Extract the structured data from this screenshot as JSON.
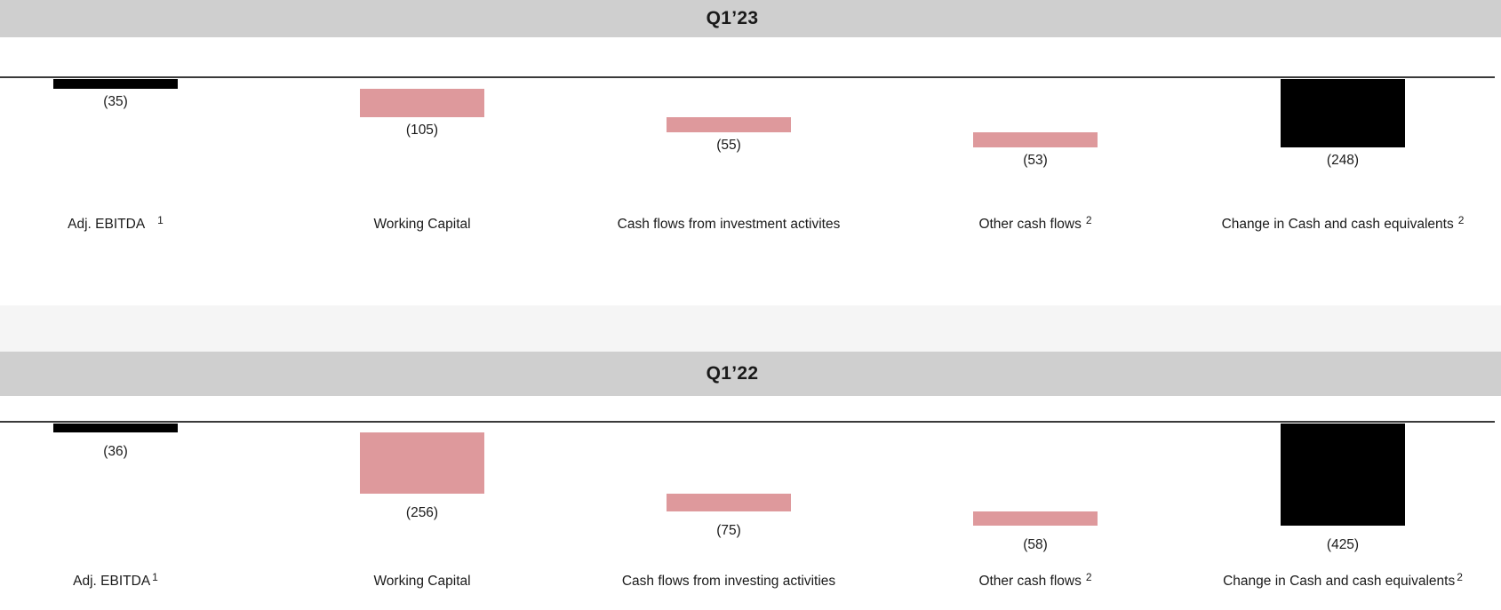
{
  "palette": {
    "header_bg": "#cfcfcf",
    "divider_band": "#f5f5f5",
    "baseline": "#3a3a3a",
    "bar_black": "#000000",
    "bar_pink": "#de999c",
    "text": "#1a1a1a"
  },
  "chart_data": [
    {
      "type": "bar",
      "subtype": "waterfall",
      "title": "Q1’23",
      "grid": "off",
      "legend": "none",
      "ylim": [
        -248,
        0
      ],
      "note": "all values negative, shown in parentheses; bars hang below baseline; last bar is cumulative total",
      "categories": [
        {
          "label": "Adj. EBITDA",
          "sup": "1",
          "sup_gap": "wide"
        },
        {
          "label": "Working Capital",
          "sup": "",
          "sup_gap": "none"
        },
        {
          "label": "Cash flows from investment activites",
          "sup": "",
          "sup_gap": "none"
        },
        {
          "label": "Other cash flows",
          "sup": "2",
          "sup_gap": "narrow"
        },
        {
          "label": "Change in Cash and cash equivalents",
          "sup": "2",
          "sup_gap": "narrow"
        }
      ],
      "values": [
        -35,
        -105,
        -55,
        -53,
        -248
      ],
      "value_labels": [
        "(35)",
        "(105)",
        "(55)",
        "(53)",
        "(248)"
      ],
      "cumulative_starts": [
        0,
        -35,
        -140,
        -195,
        0
      ],
      "bar_colors": [
        "black",
        "pink",
        "pink",
        "pink",
        "black"
      ]
    },
    {
      "type": "bar",
      "subtype": "waterfall",
      "title": "Q1’22",
      "grid": "off",
      "legend": "none",
      "ylim": [
        -425,
        0
      ],
      "note": "all values negative, shown in parentheses; bars hang below baseline; last bar is cumulative total",
      "categories": [
        {
          "label": "Adj. EBITDA",
          "sup": "1",
          "sup_gap": "tight"
        },
        {
          "label": "Working Capital",
          "sup": "",
          "sup_gap": "none"
        },
        {
          "label": "Cash flows from investing activities",
          "sup": "",
          "sup_gap": "none"
        },
        {
          "label": "Other cash flows",
          "sup": "2",
          "sup_gap": "narrow"
        },
        {
          "label": "Change in Cash and cash equivalents",
          "sup": "2",
          "sup_gap": "tight"
        }
      ],
      "values": [
        -36,
        -256,
        -75,
        -58,
        -425
      ],
      "value_labels": [
        "(36)",
        "(256)",
        "(75)",
        "(58)",
        "(425)"
      ],
      "cumulative_starts": [
        0,
        -36,
        -292,
        -367,
        0
      ],
      "bar_colors": [
        "black",
        "pink",
        "pink",
        "pink",
        "black"
      ]
    }
  ]
}
